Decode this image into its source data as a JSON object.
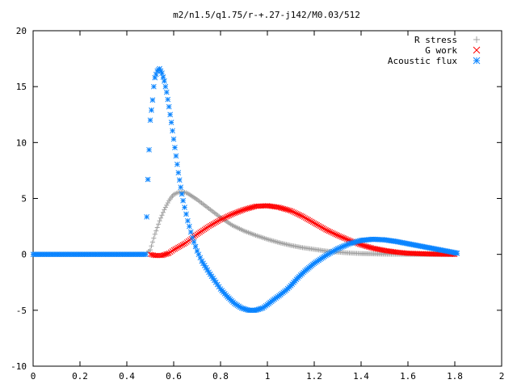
{
  "chart_data": {
    "type": "scatter",
    "title": "m2/n1.5/q1.75/r-+.27-j142/M0.03/512",
    "xlabel": "",
    "ylabel": "",
    "xlim": [
      0,
      2
    ],
    "ylim": [
      -10,
      20
    ],
    "xticks": [
      "0",
      "0.2",
      "0.4",
      "0.6",
      "0.8",
      "1",
      "1.2",
      "1.4",
      "1.6",
      "1.8",
      "2"
    ],
    "yticks": [
      "-10",
      "-5",
      "0",
      "5",
      "10",
      "15",
      "20"
    ],
    "grid": false,
    "legend_position": "top-right",
    "series": [
      {
        "name": "R stress",
        "marker": "+",
        "color": "#a0a0a0",
        "points": [
          [
            0.0,
            0
          ],
          [
            0.48,
            0
          ],
          [
            0.5,
            0.4
          ],
          [
            0.51,
            1.1
          ],
          [
            0.52,
            1.8
          ],
          [
            0.53,
            2.4
          ],
          [
            0.54,
            3.0
          ],
          [
            0.55,
            3.5
          ],
          [
            0.56,
            4.0
          ],
          [
            0.57,
            4.4
          ],
          [
            0.58,
            4.8
          ],
          [
            0.59,
            5.1
          ],
          [
            0.6,
            5.35
          ],
          [
            0.62,
            5.55
          ],
          [
            0.64,
            5.6
          ],
          [
            0.66,
            5.45
          ],
          [
            0.7,
            4.9
          ],
          [
            0.75,
            4.1
          ],
          [
            0.8,
            3.3
          ],
          [
            0.85,
            2.6
          ],
          [
            0.9,
            2.1
          ],
          [
            0.95,
            1.7
          ],
          [
            1.0,
            1.35
          ],
          [
            1.05,
            1.05
          ],
          [
            1.1,
            0.8
          ],
          [
            1.15,
            0.6
          ],
          [
            1.2,
            0.45
          ],
          [
            1.25,
            0.3
          ],
          [
            1.3,
            0.2
          ],
          [
            1.35,
            0.12
          ],
          [
            1.4,
            0.07
          ],
          [
            1.5,
            0.02
          ],
          [
            1.6,
            0.0
          ],
          [
            1.7,
            0.0
          ],
          [
            1.8,
            0.0
          ]
        ]
      },
      {
        "name": "G work",
        "marker": "x",
        "color": "#ff0000",
        "points": [
          [
            0.5,
            0.0
          ],
          [
            0.52,
            -0.1
          ],
          [
            0.55,
            -0.1
          ],
          [
            0.58,
            0.1
          ],
          [
            0.6,
            0.4
          ],
          [
            0.65,
            1.0
          ],
          [
            0.7,
            1.8
          ],
          [
            0.75,
            2.5
          ],
          [
            0.8,
            3.1
          ],
          [
            0.85,
            3.6
          ],
          [
            0.9,
            4.0
          ],
          [
            0.95,
            4.3
          ],
          [
            1.0,
            4.35
          ],
          [
            1.05,
            4.2
          ],
          [
            1.1,
            3.9
          ],
          [
            1.15,
            3.4
          ],
          [
            1.2,
            2.8
          ],
          [
            1.25,
            2.2
          ],
          [
            1.3,
            1.7
          ],
          [
            1.35,
            1.25
          ],
          [
            1.4,
            0.85
          ],
          [
            1.45,
            0.55
          ],
          [
            1.5,
            0.35
          ],
          [
            1.55,
            0.2
          ],
          [
            1.6,
            0.1
          ],
          [
            1.7,
            0.03
          ],
          [
            1.8,
            0.0
          ]
        ]
      },
      {
        "name": "Acoustic flux",
        "marker": "*",
        "color": "#0a84ff",
        "points": [
          [
            0.0,
            0
          ],
          [
            0.48,
            0
          ],
          [
            0.49,
            6.7
          ],
          [
            0.5,
            12.0
          ],
          [
            0.51,
            13.8
          ],
          [
            0.515,
            15.0
          ],
          [
            0.52,
            15.8
          ],
          [
            0.53,
            16.4
          ],
          [
            0.54,
            16.6
          ],
          [
            0.55,
            16.2
          ],
          [
            0.56,
            15.5
          ],
          [
            0.57,
            14.5
          ],
          [
            0.58,
            13.2
          ],
          [
            0.59,
            11.8
          ],
          [
            0.6,
            10.3
          ],
          [
            0.61,
            8.8
          ],
          [
            0.62,
            7.3
          ],
          [
            0.63,
            6.0
          ],
          [
            0.64,
            4.8
          ],
          [
            0.66,
            3.0
          ],
          [
            0.68,
            1.5
          ],
          [
            0.7,
            0.3
          ],
          [
            0.72,
            -0.6
          ],
          [
            0.75,
            -1.6
          ],
          [
            0.78,
            -2.5
          ],
          [
            0.8,
            -3.1
          ],
          [
            0.83,
            -3.8
          ],
          [
            0.86,
            -4.4
          ],
          [
            0.89,
            -4.8
          ],
          [
            0.92,
            -5.0
          ],
          [
            0.95,
            -5.0
          ],
          [
            0.98,
            -4.8
          ],
          [
            1.0,
            -4.5
          ],
          [
            1.03,
            -4.0
          ],
          [
            1.05,
            -3.7
          ],
          [
            1.08,
            -3.2
          ],
          [
            1.1,
            -2.8
          ],
          [
            1.13,
            -2.1
          ],
          [
            1.16,
            -1.5
          ],
          [
            1.2,
            -0.8
          ],
          [
            1.25,
            -0.1
          ],
          [
            1.3,
            0.5
          ],
          [
            1.35,
            0.95
          ],
          [
            1.4,
            1.25
          ],
          [
            1.45,
            1.35
          ],
          [
            1.5,
            1.3
          ],
          [
            1.55,
            1.15
          ],
          [
            1.6,
            0.95
          ],
          [
            1.65,
            0.75
          ],
          [
            1.7,
            0.55
          ],
          [
            1.75,
            0.35
          ],
          [
            1.8,
            0.15
          ],
          [
            1.81,
            0.1
          ]
        ]
      }
    ]
  }
}
